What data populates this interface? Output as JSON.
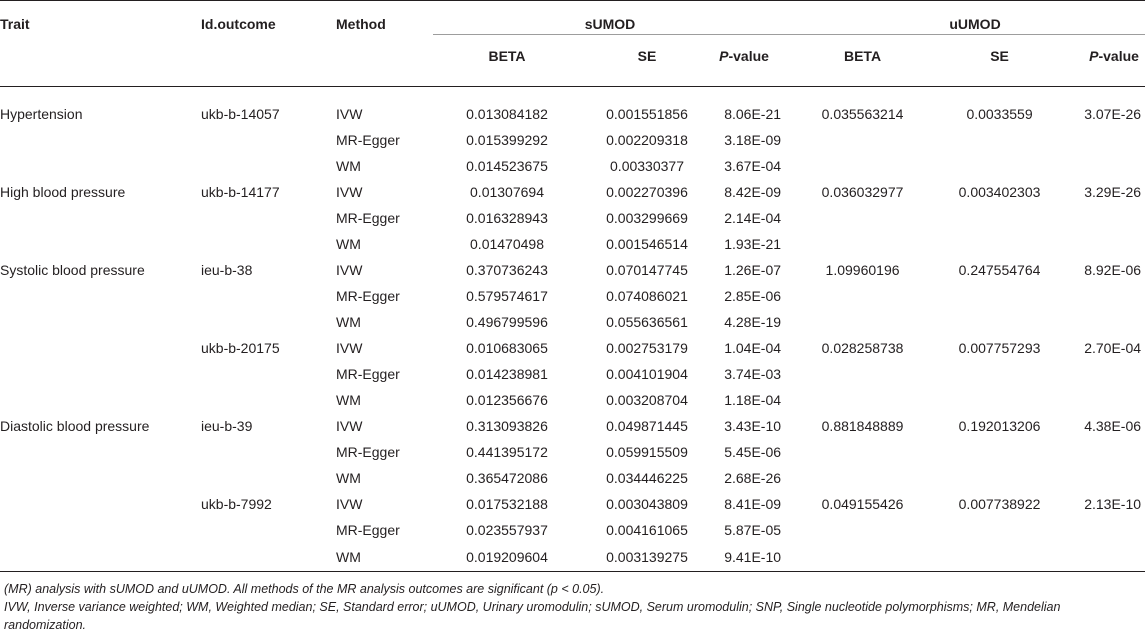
{
  "table": {
    "header": {
      "trait": "Trait",
      "outcome": "Id.outcome",
      "method": "Method",
      "group1": "sUMOD",
      "group2": "uUMOD",
      "beta": "BETA",
      "se": "SE",
      "p_italic": "P",
      "p_rest": "-value"
    },
    "rows": [
      {
        "trait": "Hypertension",
        "outcome": "ukb-b-14057",
        "method": "IVW",
        "s_beta": "0.013084182",
        "s_se": "0.001551856",
        "s_p": "8.06E-21",
        "u_beta": "0.035563214",
        "u_se": "0.0033559",
        "u_p": "3.07E-26"
      },
      {
        "trait": "",
        "outcome": "",
        "method": "MR-Egger",
        "s_beta": "0.015399292",
        "s_se": "0.002209318",
        "s_p": "3.18E-09",
        "u_beta": "",
        "u_se": "",
        "u_p": ""
      },
      {
        "trait": "",
        "outcome": "",
        "method": "WM",
        "s_beta": "0.014523675",
        "s_se": "0.00330377",
        "s_p": "3.67E-04",
        "u_beta": "",
        "u_se": "",
        "u_p": ""
      },
      {
        "trait": "High blood pressure",
        "outcome": "ukb-b-14177",
        "method": "IVW",
        "s_beta": "0.01307694",
        "s_se": "0.002270396",
        "s_p": "8.42E-09",
        "u_beta": "0.036032977",
        "u_se": "0.003402303",
        "u_p": "3.29E-26"
      },
      {
        "trait": "",
        "outcome": "",
        "method": "MR-Egger",
        "s_beta": "0.016328943",
        "s_se": "0.003299669",
        "s_p": "2.14E-04",
        "u_beta": "",
        "u_se": "",
        "u_p": ""
      },
      {
        "trait": "",
        "outcome": "",
        "method": "WM",
        "s_beta": "0.01470498",
        "s_se": "0.001546514",
        "s_p": "1.93E-21",
        "u_beta": "",
        "u_se": "",
        "u_p": ""
      },
      {
        "trait": "Systolic blood pressure",
        "outcome": "ieu-b-38",
        "method": "IVW",
        "s_beta": "0.370736243",
        "s_se": "0.070147745",
        "s_p": "1.26E-07",
        "u_beta": "1.09960196",
        "u_se": "0.247554764",
        "u_p": "8.92E-06"
      },
      {
        "trait": "",
        "outcome": "",
        "method": "MR-Egger",
        "s_beta": "0.579574617",
        "s_se": "0.074086021",
        "s_p": "2.85E-06",
        "u_beta": "",
        "u_se": "",
        "u_p": ""
      },
      {
        "trait": "",
        "outcome": "",
        "method": "WM",
        "s_beta": "0.496799596",
        "s_se": "0.055636561",
        "s_p": "4.28E-19",
        "u_beta": "",
        "u_se": "",
        "u_p": ""
      },
      {
        "trait": "",
        "outcome": "ukb-b-20175",
        "method": "IVW",
        "s_beta": "0.010683065",
        "s_se": "0.002753179",
        "s_p": "1.04E-04",
        "u_beta": "0.028258738",
        "u_se": "0.007757293",
        "u_p": "2.70E-04"
      },
      {
        "trait": "",
        "outcome": "",
        "method": "MR-Egger",
        "s_beta": "0.014238981",
        "s_se": "0.004101904",
        "s_p": "3.74E-03",
        "u_beta": "",
        "u_se": "",
        "u_p": ""
      },
      {
        "trait": "",
        "outcome": "",
        "method": "WM",
        "s_beta": "0.012356676",
        "s_se": "0.003208704",
        "s_p": "1.18E-04",
        "u_beta": "",
        "u_se": "",
        "u_p": ""
      },
      {
        "trait": "Diastolic blood pressure",
        "outcome": "ieu-b-39",
        "method": "IVW",
        "s_beta": "0.313093826",
        "s_se": "0.049871445",
        "s_p": "3.43E-10",
        "u_beta": "0.881848889",
        "u_se": "0.192013206",
        "u_p": "4.38E-06"
      },
      {
        "trait": "",
        "outcome": "",
        "method": "MR-Egger",
        "s_beta": "0.441395172",
        "s_se": "0.059915509",
        "s_p": "5.45E-06",
        "u_beta": "",
        "u_se": "",
        "u_p": ""
      },
      {
        "trait": "",
        "outcome": "",
        "method": "WM",
        "s_beta": "0.365472086",
        "s_se": "0.034446225",
        "s_p": "2.68E-26",
        "u_beta": "",
        "u_se": "",
        "u_p": ""
      },
      {
        "trait": "",
        "outcome": "ukb-b-7992",
        "method": "IVW",
        "s_beta": "0.017532188",
        "s_se": "0.003043809",
        "s_p": "8.41E-09",
        "u_beta": "0.049155426",
        "u_se": "0.007738922",
        "u_p": "2.13E-10"
      },
      {
        "trait": "",
        "outcome": "",
        "method": "MR-Egger",
        "s_beta": "0.023557937",
        "s_se": "0.004161065",
        "s_p": "5.87E-05",
        "u_beta": "",
        "u_se": "",
        "u_p": ""
      },
      {
        "trait": "",
        "outcome": "",
        "method": "WM",
        "s_beta": "0.019209604",
        "s_se": "0.003139275",
        "s_p": "9.41E-10",
        "u_beta": "",
        "u_se": "",
        "u_p": ""
      }
    ]
  },
  "footnotes": {
    "line1": "(MR) analysis with sUMOD and uUMOD. All methods of the MR analysis outcomes are significant (p < 0.05).",
    "line2": "IVW, Inverse variance weighted; WM, Weighted median; SE, Standard error; uUMOD, Urinary uromodulin; sUMOD, Serum uromodulin; SNP, Single nucleotide polymorphisms; MR, Mendelian randomization."
  }
}
